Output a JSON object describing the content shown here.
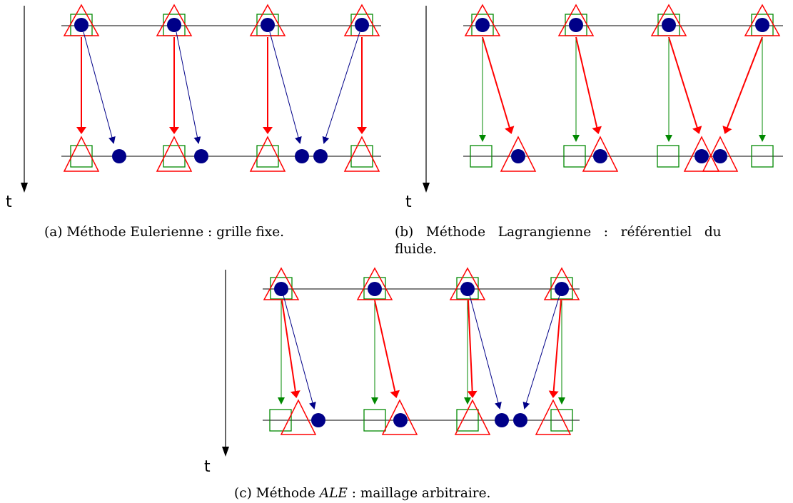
{
  "time_label": "t",
  "captions": {
    "a": "(a) Méthode Eulerienne : grille fixe.",
    "b_line1": "(b)   Méthode   Lagrangienne   :   référentiel   du",
    "b_line2": "fluide.",
    "c_prefix": "(c) Méthode ",
    "c_ale": "ALE",
    "c_suffix": " : maillage arbitraire."
  },
  "colors": {
    "triangle": "#ff0000",
    "square": "#008800",
    "particle": "#000088",
    "line": "#000000"
  }
}
